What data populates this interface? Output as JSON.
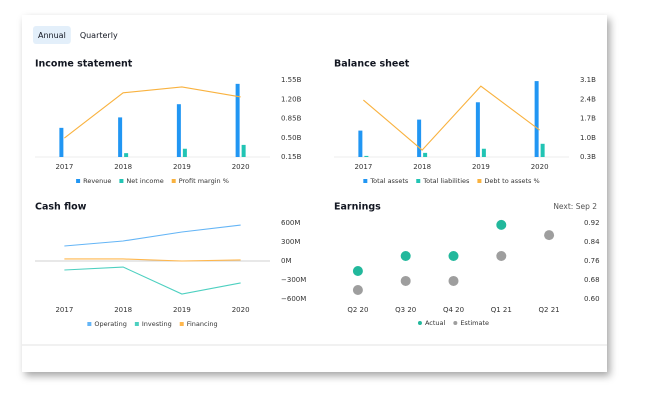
{
  "tabs": {
    "items": [
      "Annual",
      "Quarterly"
    ],
    "selected": 0
  },
  "chart_data": [
    {
      "type": "bar",
      "title": "Income statement",
      "categories": [
        "2017",
        "2018",
        "2019",
        "2020"
      ],
      "series": [
        {
          "name": "Revenue",
          "color": "#2196f3",
          "values": [
            0.68,
            0.87,
            1.11,
            1.48
          ]
        },
        {
          "name": "Net income",
          "color": "#22c4b4",
          "values": [
            0.15,
            0.22,
            0.3,
            0.37
          ]
        },
        {
          "name": "Profit margin %",
          "color": "#f9b23f",
          "type": "line",
          "axis": "y2",
          "values": [
            7.4,
            25,
            27.3,
            23.4
          ]
        }
      ],
      "ylim": [
        0.15,
        1.55
      ],
      "yticks": [
        {
          "value": 1.55,
          "label": "1.55B"
        },
        {
          "value": 1.2,
          "label": "1.20B"
        },
        {
          "value": 0.85,
          "label": "0.85B"
        },
        {
          "value": 0.5,
          "label": "0.50B"
        },
        {
          "value": 0.15,
          "label": "0.15B"
        }
      ],
      "y2lim": [
        0,
        30
      ]
    },
    {
      "type": "bar",
      "title": "Balance sheet",
      "categories": [
        "2017",
        "2018",
        "2019",
        "2020"
      ],
      "series": [
        {
          "name": "Total assets",
          "color": "#2196f3",
          "values": [
            1.26,
            1.66,
            2.29,
            3.06
          ]
        },
        {
          "name": "Total liabilities",
          "color": "#22c4b4",
          "values": [
            0.34,
            0.45,
            0.6,
            0.78
          ]
        },
        {
          "name": "Debt to assets %",
          "color": "#f9b23f",
          "type": "line",
          "axis": "y2",
          "values": [
            74,
            9,
            92,
            35
          ]
        }
      ],
      "ylim": [
        0.3,
        3.1
      ],
      "yticks": [
        {
          "value": 3.1,
          "label": "3.1B"
        },
        {
          "value": 2.4,
          "label": "2.4B"
        },
        {
          "value": 1.7,
          "label": "1.7B"
        },
        {
          "value": 1.0,
          "label": "1.0B"
        },
        {
          "value": 0.3,
          "label": "0.3B"
        }
      ],
      "y2lim": [
        0,
        100
      ]
    },
    {
      "type": "line",
      "title": "Cash flow",
      "categories": [
        "2017",
        "2018",
        "2019",
        "2020"
      ],
      "series": [
        {
          "name": "Operating",
          "color": "#64b5f6",
          "values": [
            237,
            316,
            458,
            568
          ]
        },
        {
          "name": "Investing",
          "color": "#4dd0c0",
          "values": [
            -142,
            -95,
            -521,
            -347
          ]
        },
        {
          "name": "Financing",
          "color": "#ffb74d",
          "values": [
            32,
            32,
            0,
            16
          ]
        }
      ],
      "ylim": [
        -600,
        600
      ],
      "yticks": [
        {
          "value": 600,
          "label": "600M"
        },
        {
          "value": 300,
          "label": "300M"
        },
        {
          "value": 0,
          "label": "0M"
        },
        {
          "value": -300,
          "label": "−300M"
        },
        {
          "value": -600,
          "label": "−600M"
        }
      ],
      "zero_line": true
    },
    {
      "type": "scatter",
      "title": "Earnings",
      "note": "Next: Sep 2",
      "categories": [
        "Q2 20",
        "Q3 20",
        "Q4 20",
        "Q1 21",
        "Q2 21"
      ],
      "series": [
        {
          "name": "Actual",
          "color": "#22b89c",
          "values": [
            0.718,
            0.781,
            0.781,
            0.912,
            null
          ]
        },
        {
          "name": "Estimate",
          "color": "#9e9e9e",
          "values": [
            0.638,
            0.676,
            0.676,
            0.781,
            0.869
          ]
        }
      ],
      "ylim": [
        0.6,
        0.92
      ],
      "yticks": [
        0.92,
        0.84,
        0.76,
        0.68,
        {
          "value": 0.6,
          "label": "0.60"
        }
      ]
    }
  ]
}
